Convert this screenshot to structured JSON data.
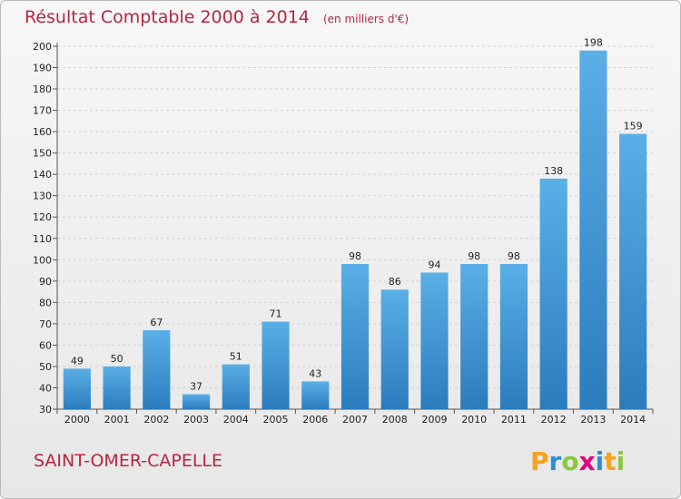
{
  "title": "Résultat Comptable 2000 à 2014",
  "unit": "(en milliers d'€)",
  "commune": "SAINT-OMER-CAPELLE",
  "logo": {
    "text": "Proxiti",
    "letters": [
      {
        "char": "P",
        "color": "#f7a21b"
      },
      {
        "char": "r",
        "color": "#2d8fd6"
      },
      {
        "char": "o",
        "color": "#8cc63f"
      },
      {
        "char": "x",
        "color": "#e5007e"
      },
      {
        "char": "i",
        "color": "#2d8fd6"
      },
      {
        "char": "t",
        "color": "#f7a21b"
      },
      {
        "char": "i",
        "color": "#8cc63f"
      }
    ]
  },
  "colors": {
    "title": "#b8253f",
    "bar_light": "#5aafe6",
    "bar_dark": "#2b7cbd"
  },
  "chart_data": {
    "type": "bar",
    "categories": [
      "2000",
      "2001",
      "2002",
      "2003",
      "2004",
      "2005",
      "2006",
      "2007",
      "2008",
      "2009",
      "2010",
      "2011",
      "2012",
      "2013",
      "2014"
    ],
    "values": [
      49,
      50,
      67,
      37,
      51,
      71,
      43,
      98,
      86,
      94,
      98,
      98,
      138,
      198,
      159
    ],
    "ylim": [
      30,
      200
    ],
    "yticks": [
      30,
      40,
      50,
      60,
      70,
      80,
      90,
      100,
      110,
      120,
      130,
      140,
      150,
      160,
      170,
      180,
      190,
      200
    ],
    "grid": true,
    "legend": false
  }
}
